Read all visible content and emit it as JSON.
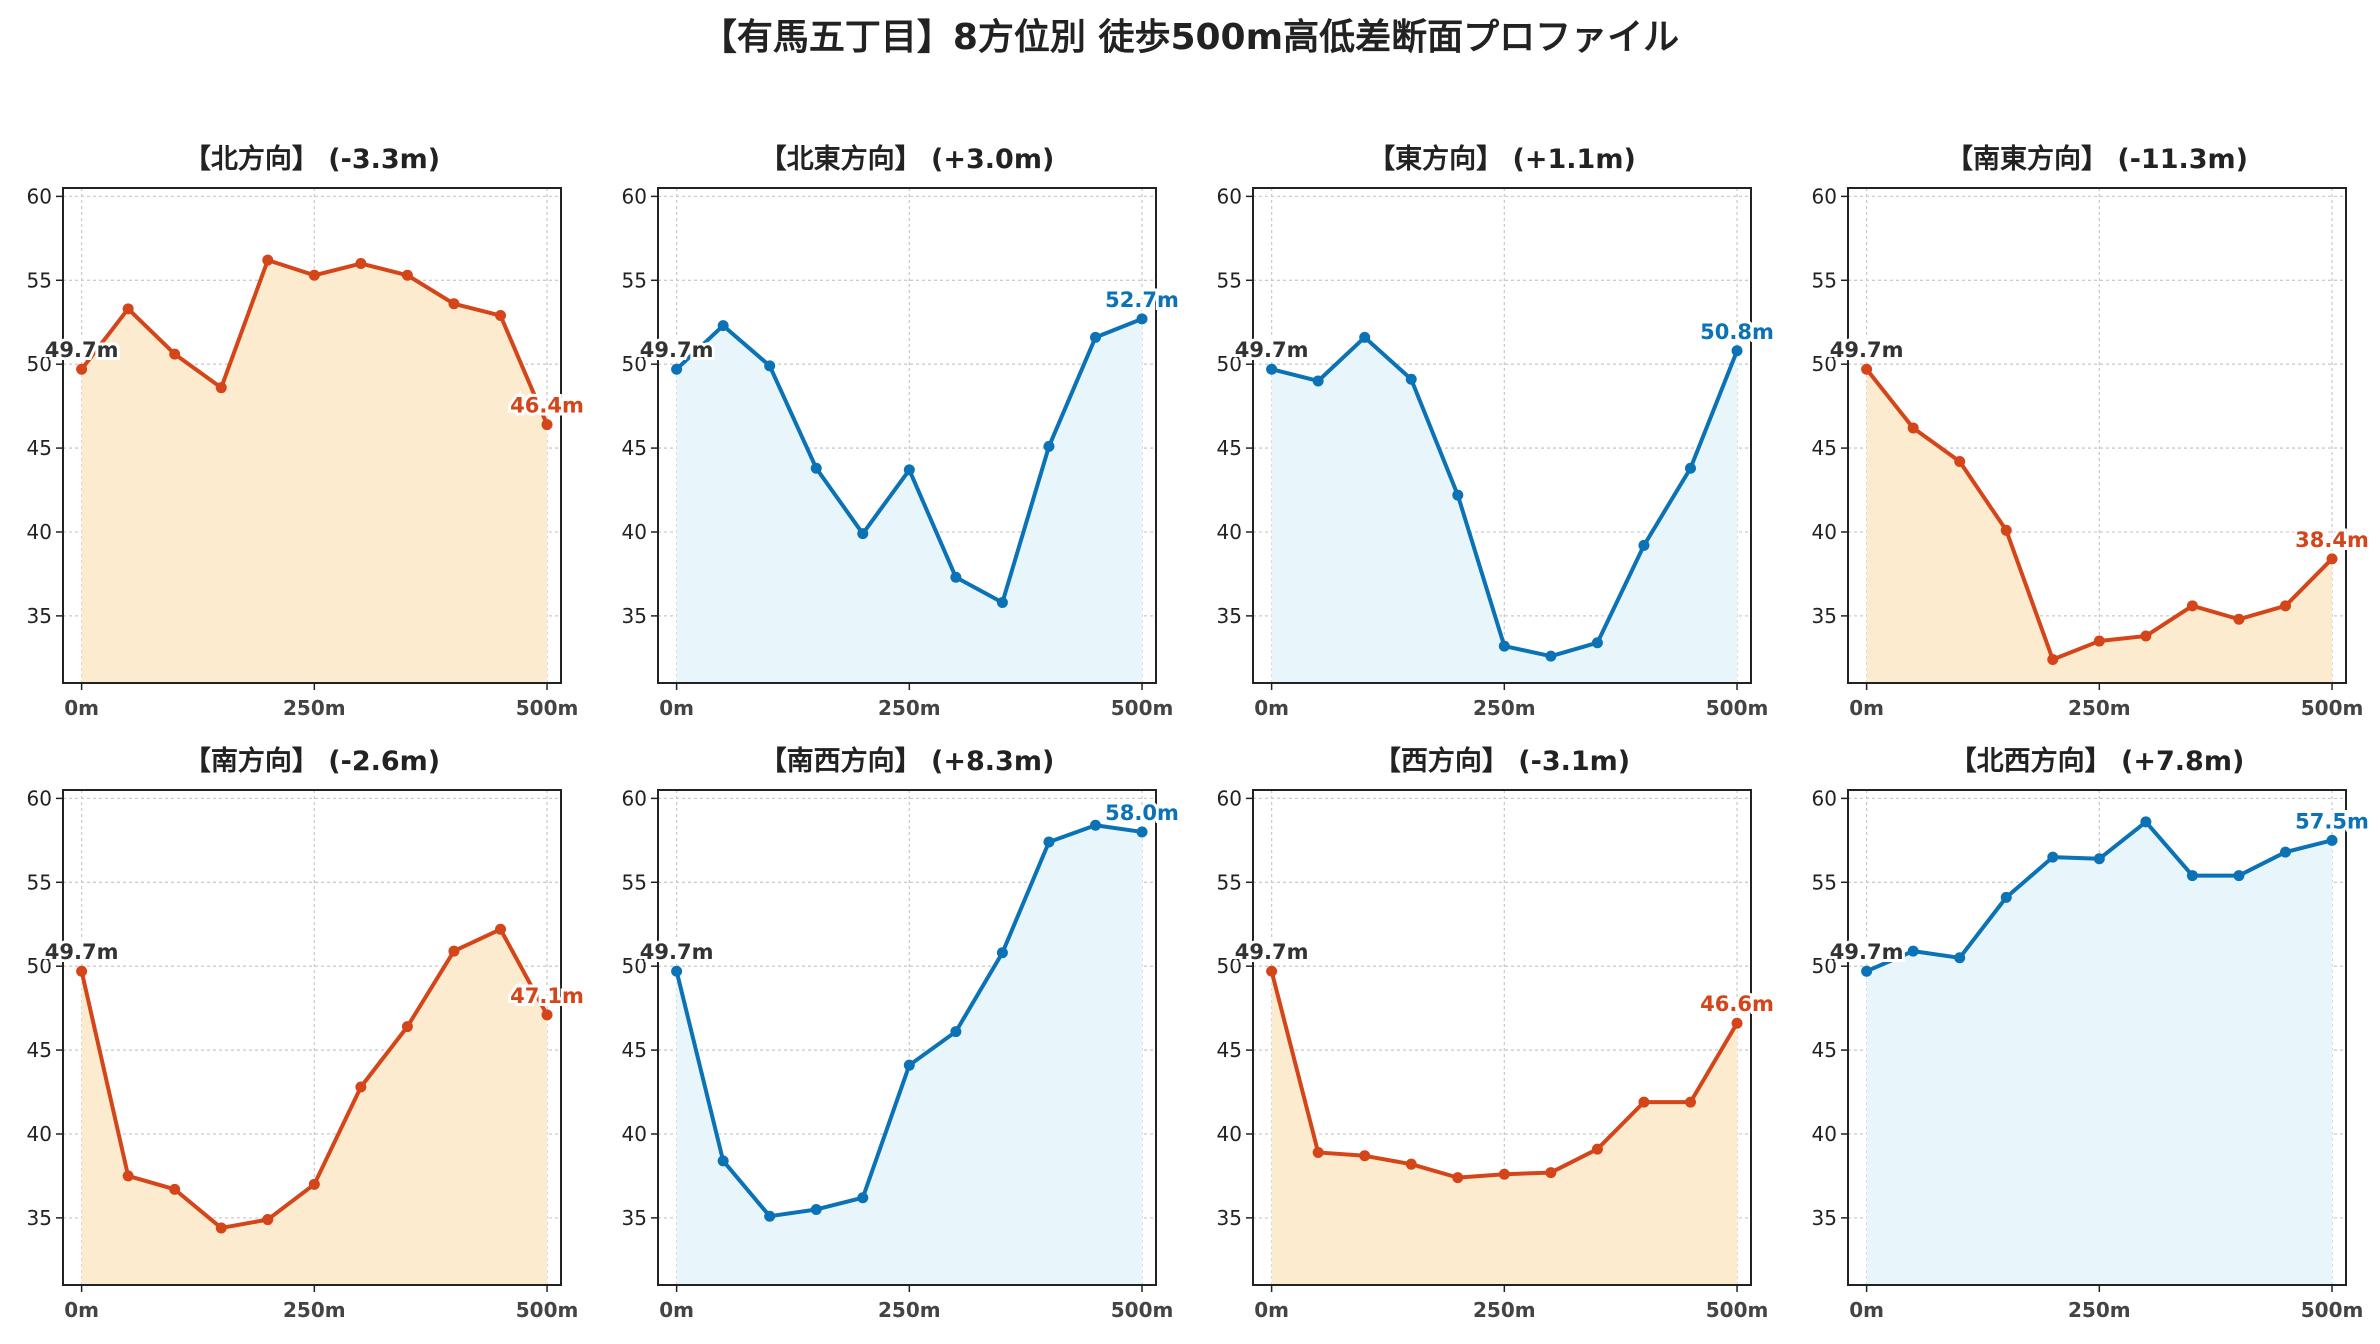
{
  "title": "【有馬五丁目】8方位別 徒歩500m高低差断面プロファイル",
  "colors": {
    "up": "#D4451A",
    "down": "#0A72B5",
    "up_fill": "#FDEBD0",
    "down_fill": "#E8F5FB",
    "start_label": "#333333"
  },
  "chart_data": [
    {
      "type": "area",
      "title": "【北方向】 (-3.3m)",
      "trend": "down",
      "x": [
        0,
        50,
        100,
        150,
        200,
        250,
        300,
        350,
        400,
        450,
        500
      ],
      "y": [
        49.7,
        53.3,
        50.6,
        48.6,
        56.2,
        55.3,
        56.0,
        55.3,
        53.6,
        52.9,
        46.4
      ],
      "start_label": "49.7m",
      "end_label": "46.4m",
      "ylim": [
        31,
        60.5
      ],
      "yticks": [
        35,
        40,
        45,
        50,
        55,
        60
      ],
      "xticks": [
        "0m",
        "250m",
        "500m"
      ],
      "grid": true
    },
    {
      "type": "area",
      "title": "【北東方向】 (+3.0m)",
      "trend": "up",
      "x": [
        0,
        50,
        100,
        150,
        200,
        250,
        300,
        350,
        400,
        450,
        500
      ],
      "y": [
        49.7,
        52.3,
        49.9,
        43.8,
        39.9,
        43.7,
        37.3,
        35.8,
        45.1,
        51.6,
        52.7
      ],
      "start_label": "49.7m",
      "end_label": "52.7m",
      "ylim": [
        31,
        60.5
      ],
      "yticks": [
        35,
        40,
        45,
        50,
        55,
        60
      ],
      "xticks": [
        "0m",
        "250m",
        "500m"
      ],
      "grid": true
    },
    {
      "type": "area",
      "title": "【東方向】 (+1.1m)",
      "trend": "up",
      "x": [
        0,
        50,
        100,
        150,
        200,
        250,
        300,
        350,
        400,
        450,
        500
      ],
      "y": [
        49.7,
        49.0,
        51.6,
        49.1,
        42.2,
        33.2,
        32.6,
        33.4,
        39.2,
        43.8,
        50.8
      ],
      "start_label": "49.7m",
      "end_label": "50.8m",
      "ylim": [
        31,
        60.5
      ],
      "yticks": [
        35,
        40,
        45,
        50,
        55,
        60
      ],
      "xticks": [
        "0m",
        "250m",
        "500m"
      ],
      "grid": true
    },
    {
      "type": "area",
      "title": "【南東方向】 (-11.3m)",
      "trend": "down",
      "x": [
        0,
        50,
        100,
        150,
        200,
        250,
        300,
        350,
        400,
        450,
        500
      ],
      "y": [
        49.7,
        46.2,
        44.2,
        40.1,
        32.4,
        33.5,
        33.8,
        35.6,
        34.8,
        35.6,
        38.4
      ],
      "start_label": "49.7m",
      "end_label": "38.4m",
      "ylim": [
        31,
        60.5
      ],
      "yticks": [
        35,
        40,
        45,
        50,
        55,
        60
      ],
      "xticks": [
        "0m",
        "250m",
        "500m"
      ],
      "grid": true
    },
    {
      "type": "area",
      "title": "【南方向】 (-2.6m)",
      "trend": "down",
      "x": [
        0,
        50,
        100,
        150,
        200,
        250,
        300,
        350,
        400,
        450,
        500
      ],
      "y": [
        49.7,
        37.5,
        36.7,
        34.4,
        34.9,
        37.0,
        42.8,
        46.4,
        50.9,
        52.2,
        47.1
      ],
      "start_label": "49.7m",
      "end_label": "47.1m",
      "ylim": [
        31,
        60.5
      ],
      "yticks": [
        35,
        40,
        45,
        50,
        55,
        60
      ],
      "xticks": [
        "0m",
        "250m",
        "500m"
      ],
      "grid": true
    },
    {
      "type": "area",
      "title": "【南西方向】 (+8.3m)",
      "trend": "up",
      "x": [
        0,
        50,
        100,
        150,
        200,
        250,
        300,
        350,
        400,
        450,
        500
      ],
      "y": [
        49.7,
        38.4,
        35.1,
        35.5,
        36.2,
        44.1,
        46.1,
        50.8,
        57.4,
        58.4,
        58.0
      ],
      "start_label": "49.7m",
      "end_label": "58.0m",
      "ylim": [
        31,
        60.5
      ],
      "yticks": [
        35,
        40,
        45,
        50,
        55,
        60
      ],
      "xticks": [
        "0m",
        "250m",
        "500m"
      ],
      "grid": true
    },
    {
      "type": "area",
      "title": "【西方向】 (-3.1m)",
      "trend": "down",
      "x": [
        0,
        50,
        100,
        150,
        200,
        250,
        300,
        350,
        400,
        450,
        500
      ],
      "y": [
        49.7,
        38.9,
        38.7,
        38.2,
        37.4,
        37.6,
        37.7,
        39.1,
        41.9,
        41.9,
        46.6
      ],
      "start_label": "49.7m",
      "end_label": "46.6m",
      "ylim": [
        31,
        60.5
      ],
      "yticks": [
        35,
        40,
        45,
        50,
        55,
        60
      ],
      "xticks": [
        "0m",
        "250m",
        "500m"
      ],
      "grid": true
    },
    {
      "type": "area",
      "title": "【北西方向】 (+7.8m)",
      "trend": "up",
      "x": [
        0,
        50,
        100,
        150,
        200,
        250,
        300,
        350,
        400,
        450,
        500
      ],
      "y": [
        49.7,
        50.9,
        50.5,
        54.1,
        56.5,
        56.4,
        58.6,
        55.4,
        55.4,
        56.8,
        57.5
      ],
      "start_label": "49.7m",
      "end_label": "57.5m",
      "ylim": [
        31,
        60.5
      ],
      "yticks": [
        35,
        40,
        45,
        50,
        55,
        60
      ],
      "xticks": [
        "0m",
        "250m",
        "500m"
      ],
      "grid": true
    }
  ]
}
